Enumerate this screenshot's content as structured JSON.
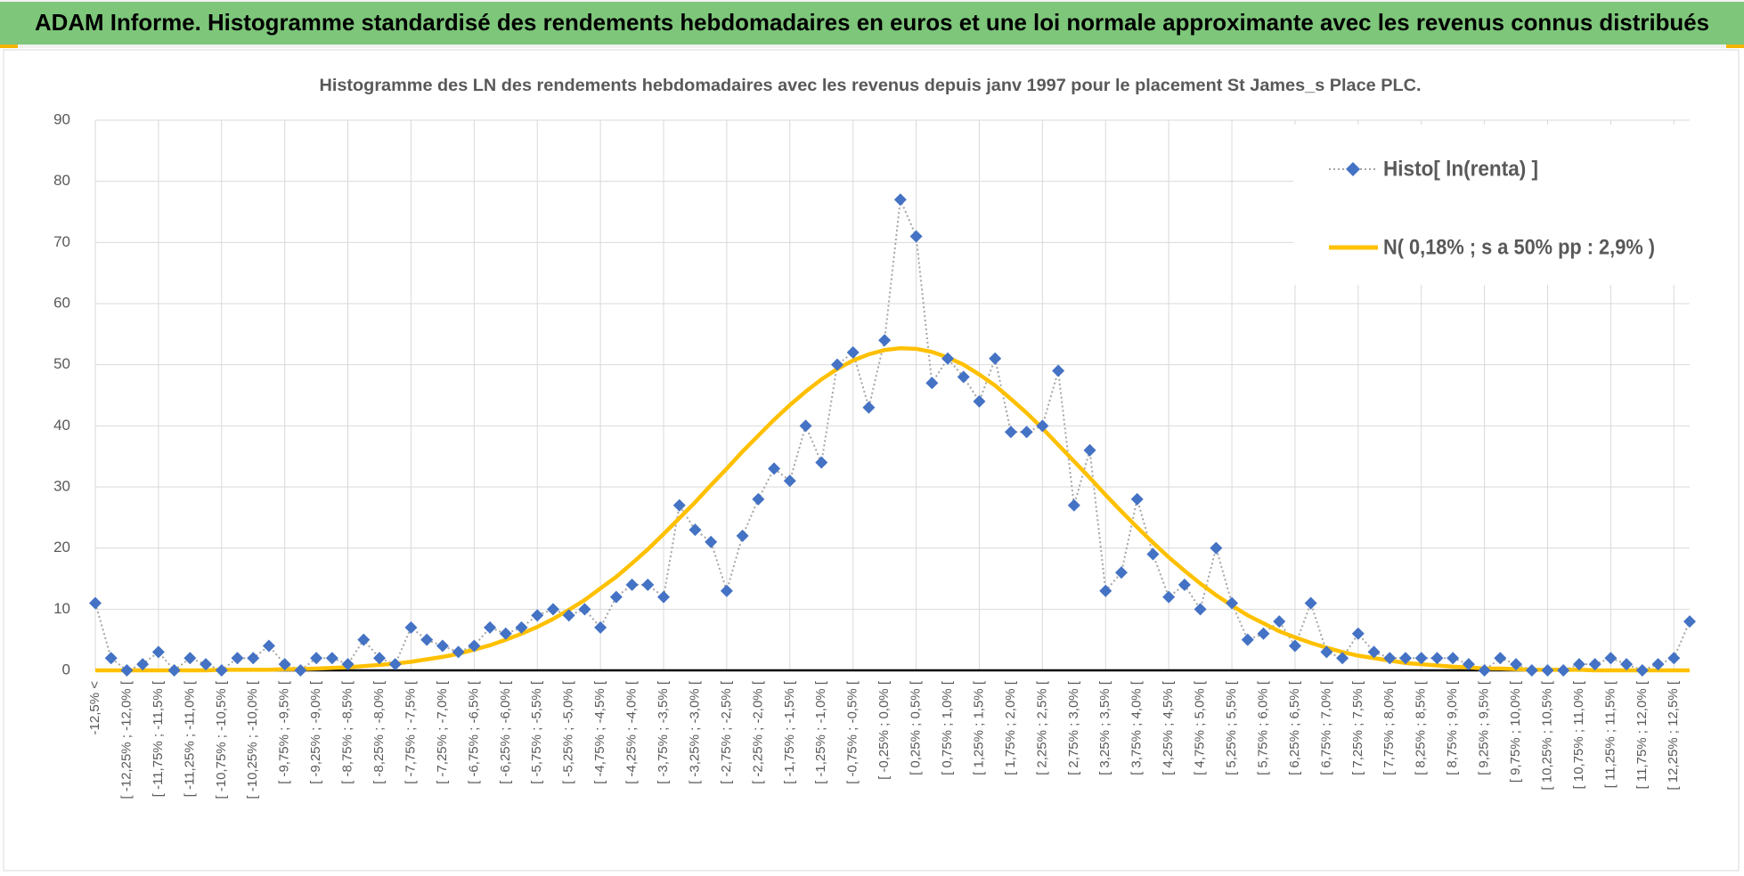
{
  "header": {
    "title": "ADAM Informe. Histogramme standardisé des rendements hebdomadaires en euros et une loi normale approximante avec les revenus connus distribués"
  },
  "chart_data": {
    "type": "line",
    "title": "Histogramme des LN des rendements hebdomadaires avec les revenus depuis janv 1997 pour le placement St James_s Place PLC.",
    "categories": [
      "-12,5% <",
      null,
      "[ -12,25% ; -12,0% [",
      null,
      "[ -11,75% ; -11,5% [",
      null,
      "[ -11,25% ; -11,0% [",
      null,
      "[ -10,75% ; -10,5% [",
      null,
      "[ -10,25% ; -10,0% [",
      null,
      "[ -9,75% ; -9,5% [",
      null,
      "[ -9,25% ; -9,0% [",
      null,
      "[ -8,75% ; -8,5% [",
      null,
      "[ -8,25% ; -8,0% [",
      null,
      "[ -7,75% ; -7,5% [",
      null,
      "[ -7,25% ; -7,0% [",
      null,
      "[ -6,75% ; -6,5% [",
      null,
      "[ -6,25% ; -6,0% [",
      null,
      "[ -5,75% ; -5,5% [",
      null,
      "[ -5,25% ; -5,0% [",
      null,
      "[ -4,75% ; -4,5% [",
      null,
      "[ -4,25% ; -4,0% [",
      null,
      "[ -3,75% ; -3,5% [",
      null,
      "[ -3,25% ; -3,0% [",
      null,
      "[ -2,75% ; -2,5% [",
      null,
      "[ -2,25% ; -2,0% [",
      null,
      "[ -1,75% ; -1,5% [",
      null,
      "[ -1,25% ; -1,0% [",
      null,
      "[ -0,75% ; -0,5% [",
      null,
      "[ -0,25% ; 0,0% [",
      null,
      "[ 0,25% ; 0,5% [",
      null,
      "[ 0,75% ; 1,0% [",
      null,
      "[ 1,25% ; 1,5% [",
      null,
      "[ 1,75% ; 2,0% [",
      null,
      "[ 2,25% ; 2,5% [",
      null,
      "[ 2,75% ; 3,0% [",
      null,
      "[ 3,25% ; 3,5% [",
      null,
      "[ 3,75% ; 4,0% [",
      null,
      "[ 4,25% ; 4,5% [",
      null,
      "[ 4,75% ; 5,0% [",
      null,
      "[ 5,25% ; 5,5% [",
      null,
      "[ 5,75% ; 6,0% [",
      null,
      "[ 6,25% ; 6,5% [",
      null,
      "[ 6,75% ; 7,0% [",
      null,
      "[ 7,25% ; 7,5% [",
      null,
      "[ 7,75% ; 8,0% [",
      null,
      "[ 8,25% ; 8,5% [",
      null,
      "[ 8,75% ; 9,0% [",
      null,
      "[ 9,25% ; 9,5% [",
      null,
      "[ 9,75% ; 10,0% [",
      null,
      "[ 10,25% ; 10,5% [",
      null,
      "[ 10,75% ; 11,0% [",
      null,
      "[ 11,25% ; 11,5% [",
      null,
      "[ 11,75% ; 12,0% [",
      null,
      "[ 12,25% ; 12,5% [",
      null
    ],
    "series": [
      {
        "name": "Histo[ ln(renta) ]",
        "color": "#4472c4",
        "values": [
          11,
          2,
          0,
          1,
          3,
          0,
          2,
          1,
          0,
          2,
          2,
          4,
          1,
          0,
          2,
          2,
          1,
          5,
          2,
          1,
          7,
          5,
          4,
          3,
          4,
          7,
          6,
          7,
          9,
          10,
          9,
          10,
          7,
          12,
          14,
          14,
          12,
          27,
          23,
          21,
          13,
          22,
          28,
          33,
          31,
          40,
          34,
          50,
          52,
          43,
          54,
          77,
          71,
          47,
          51,
          48,
          44,
          51,
          39,
          39,
          40,
          49,
          27,
          36,
          13,
          16,
          28,
          19,
          12,
          14,
          10,
          20,
          11,
          5,
          6,
          8,
          4,
          11,
          3,
          2,
          6,
          3,
          2,
          2,
          2,
          2,
          2,
          1,
          0,
          2,
          1,
          0,
          0,
          0,
          1,
          1,
          2,
          1,
          0,
          1,
          2,
          8
        ]
      },
      {
        "name": "N( 0,18% ; s a 50% pp : 2,9% )",
        "color": "#ffc000",
        "values": [
          0,
          0,
          0,
          0,
          0,
          0,
          0,
          0,
          0.1,
          0.1,
          0.1,
          0.1,
          0.2,
          0.2,
          0.3,
          0.4,
          0.5,
          0.7,
          0.9,
          1.1,
          1.4,
          1.8,
          2.2,
          2.7,
          3.4,
          4.1,
          5.0,
          6.0,
          7.1,
          8.4,
          9.9,
          11.5,
          13.4,
          15.3,
          17.5,
          19.8,
          22.3,
          24.9,
          27.5,
          30.3,
          33.0,
          35.8,
          38.4,
          41.0,
          43.4,
          45.6,
          47.6,
          49.3,
          50.7,
          51.7,
          52.4,
          52.7,
          52.6,
          52.1,
          51.2,
          50.0,
          48.4,
          46.6,
          44.4,
          42.1,
          39.6,
          36.9,
          34.2,
          31.5,
          28.7,
          26.0,
          23.4,
          20.9,
          18.5,
          16.3,
          14.2,
          12.3,
          10.6,
          9.0,
          7.7,
          6.4,
          5.4,
          4.5,
          3.7,
          3.0,
          2.4,
          2.0,
          1.6,
          1.2,
          1.0,
          0.8,
          0.6,
          0.5,
          0.3,
          0.3,
          0.2,
          0.1,
          0.1,
          0.1,
          0.1,
          0,
          0,
          0,
          0,
          0,
          0,
          0
        ]
      }
    ],
    "ylim": [
      0,
      90
    ],
    "yticks": [
      0,
      10,
      20,
      30,
      40,
      50,
      60,
      70,
      80,
      90
    ],
    "grid": true,
    "legend": "top-right"
  }
}
